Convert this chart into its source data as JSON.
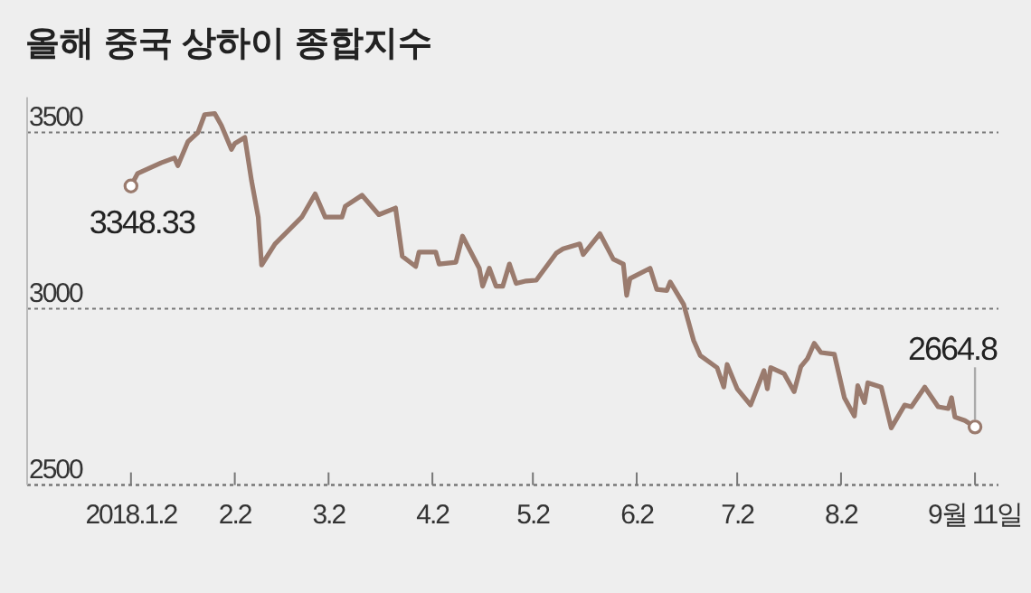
{
  "chart_data": {
    "type": "line",
    "title": "올해 중국 상하이 종합지수",
    "x": [
      "2018-01-02",
      "2018-01-04",
      "2018-01-11",
      "2018-01-15",
      "2018-01-16",
      "2018-01-19",
      "2018-01-22",
      "2018-01-24",
      "2018-01-27",
      "2018-01-29",
      "2018-02-01",
      "2018-02-02",
      "2018-02-05",
      "2018-02-07",
      "2018-02-09",
      "2018-02-10",
      "2018-02-14",
      "2018-02-22",
      "2018-02-26",
      "2018-03-01",
      "2018-03-06",
      "2018-03-07",
      "2018-03-12",
      "2018-03-17",
      "2018-03-22",
      "2018-03-24",
      "2018-03-28",
      "2018-03-29",
      "2018-04-03",
      "2018-04-04",
      "2018-04-09",
      "2018-04-11",
      "2018-04-16",
      "2018-04-17",
      "2018-04-19",
      "2018-04-21",
      "2018-04-23",
      "2018-04-25",
      "2018-04-27",
      "2018-04-30",
      "2018-05-03",
      "2018-05-09",
      "2018-05-11",
      "2018-05-16",
      "2018-05-17",
      "2018-05-22",
      "2018-05-26",
      "2018-05-29",
      "2018-05-30",
      "2018-05-31",
      "2018-06-06",
      "2018-06-08",
      "2018-06-11",
      "2018-06-12",
      "2018-06-16",
      "2018-06-19",
      "2018-06-21",
      "2018-06-26",
      "2018-06-28",
      "2018-06-29",
      "2018-07-02",
      "2018-07-06",
      "2018-07-10",
      "2018-07-11",
      "2018-07-12",
      "2018-07-16",
      "2018-07-19",
      "2018-07-21",
      "2018-07-23",
      "2018-07-25",
      "2018-07-27",
      "2018-07-31",
      "2018-08-03",
      "2018-08-06",
      "2018-08-07",
      "2018-08-09",
      "2018-08-10",
      "2018-08-14",
      "2018-08-17",
      "2018-08-21",
      "2018-08-23",
      "2018-08-27",
      "2018-08-31",
      "2018-09-03",
      "2018-09-04",
      "2018-09-05",
      "2018-09-08",
      "2018-09-11"
    ],
    "series": [
      {
        "color": "#9a7b6e",
        "values": [
          3348.33,
          3384,
          3414,
          3428,
          3406,
          3474,
          3500,
          3551,
          3554,
          3520,
          3452,
          3469,
          3486,
          3363,
          3260,
          3124,
          3184,
          3260,
          3326,
          3260,
          3260,
          3291,
          3322,
          3267,
          3286,
          3149,
          3120,
          3161,
          3161,
          3127,
          3132,
          3206,
          3115,
          3064,
          3115,
          3064,
          3064,
          3127,
          3072,
          3079,
          3081,
          3158,
          3170,
          3184,
          3154,
          3213,
          3141,
          3127,
          3038,
          3086,
          3115,
          3055,
          3052,
          3076,
          3013,
          2910,
          2867,
          2833,
          2778,
          2842,
          2773,
          2727,
          2825,
          2773,
          2833,
          2816,
          2765,
          2836,
          2859,
          2902,
          2876,
          2871,
          2748,
          2696,
          2782,
          2734,
          2790,
          2778,
          2662,
          2727,
          2722,
          2778,
          2722,
          2717,
          2748,
          2693,
          2683,
          2664.8
        ]
      }
    ],
    "xlim": [
      "2017-12-02",
      "2018-09-18"
    ],
    "xticks": [
      {
        "value": "2018-01-02",
        "label": "2018.1.2"
      },
      {
        "value": "2018-02-02",
        "label": "2.2"
      },
      {
        "value": "2018-03-02",
        "label": "3.2"
      },
      {
        "value": "2018-04-02",
        "label": "4.2"
      },
      {
        "value": "2018-05-02",
        "label": "5.2"
      },
      {
        "value": "2018-06-02",
        "label": "6.2"
      },
      {
        "value": "2018-07-02",
        "label": "7.2"
      },
      {
        "value": "2018-08-02",
        "label": "8.2"
      },
      {
        "value": "2018-09-11",
        "label": "9월 11일"
      }
    ],
    "ylim": [
      2500,
      3600
    ],
    "yticks": [
      2500,
      3000,
      3500
    ],
    "grid": "y",
    "annotations": [
      {
        "text": "3348.33",
        "x": "2018-01-02",
        "y": 3348.33
      },
      {
        "text": "2664.8",
        "x": "2018-09-11",
        "y": 2664.8
      }
    ]
  }
}
